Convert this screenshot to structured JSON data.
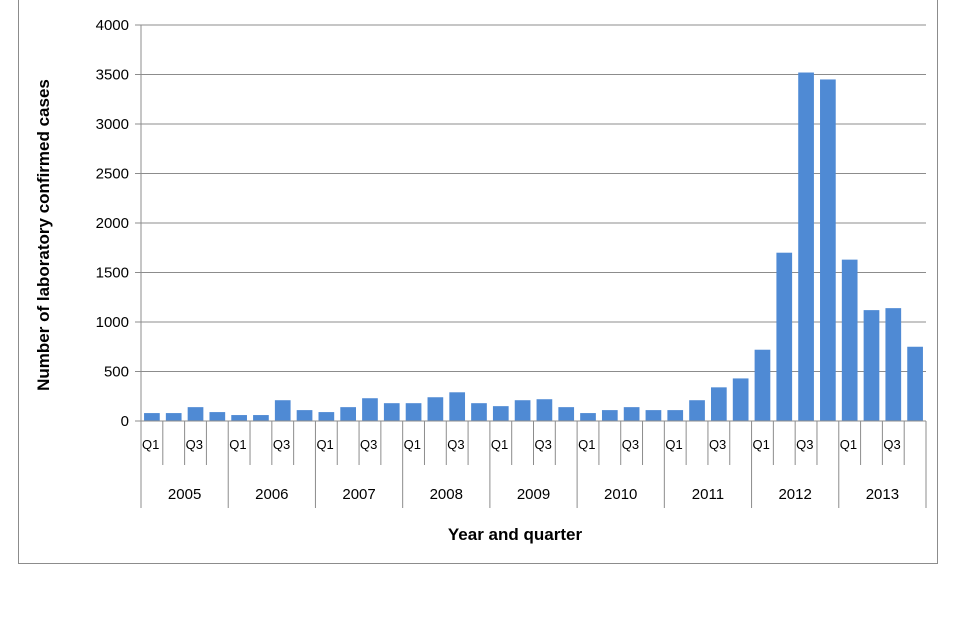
{
  "chart_data": {
    "type": "bar",
    "title": "",
    "xlabel": "Year and quarter",
    "ylabel": "Number of laboratory confirmed cases",
    "ylim": [
      0,
      4000
    ],
    "yticks": [
      0,
      500,
      1000,
      1500,
      2000,
      2500,
      3000,
      3500,
      4000
    ],
    "grid": true,
    "legend": "none",
    "years": [
      "2005",
      "2006",
      "2007",
      "2008",
      "2009",
      "2010",
      "2011",
      "2012",
      "2013"
    ],
    "quarter_tick_labels": [
      "Q1",
      "",
      "Q3",
      ""
    ],
    "categories": [
      "2005 Q1",
      "2005 Q2",
      "2005 Q3",
      "2005 Q4",
      "2006 Q1",
      "2006 Q2",
      "2006 Q3",
      "2006 Q4",
      "2007 Q1",
      "2007 Q2",
      "2007 Q3",
      "2007 Q4",
      "2008 Q1",
      "2008 Q2",
      "2008 Q3",
      "2008 Q4",
      "2009 Q1",
      "2009 Q2",
      "2009 Q3",
      "2009 Q4",
      "2010 Q1",
      "2010 Q2",
      "2010 Q3",
      "2010 Q4",
      "2011 Q1",
      "2011 Q2",
      "2011 Q3",
      "2011 Q4",
      "2012 Q1",
      "2012 Q2",
      "2012 Q3",
      "2012 Q4",
      "2013 Q1",
      "2013 Q2",
      "2013 Q3",
      "2013 Q4"
    ],
    "values": [
      80,
      80,
      140,
      90,
      60,
      60,
      210,
      110,
      90,
      140,
      230,
      180,
      180,
      240,
      290,
      180,
      150,
      210,
      220,
      140,
      80,
      110,
      140,
      110,
      110,
      210,
      340,
      430,
      720,
      1700,
      3520,
      3450,
      1630,
      1120,
      1140,
      750
    ],
    "bar_color": "#4f8ad4"
  }
}
